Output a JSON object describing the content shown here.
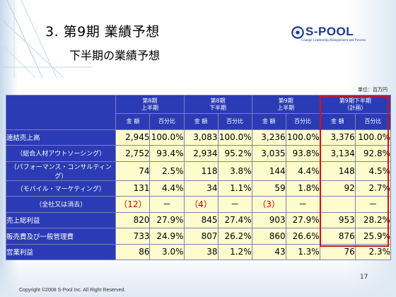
{
  "title": {
    "main": "3. 第9期 業績予想",
    "sub": "下半期の業績予想"
  },
  "logo": {
    "name": "S-POOL",
    "tagline": "Change Leadership,Management and Process"
  },
  "unit": "単位：百万円",
  "table": {
    "periods": [
      {
        "line1": "第8期",
        "line2": "上半期"
      },
      {
        "line1": "第8期",
        "line2": "下半期"
      },
      {
        "line1": "第9期",
        "line2": "上半期"
      },
      {
        "line1": "第9期下半期",
        "line2": "（計画）"
      }
    ],
    "sub_headers": {
      "amount": "金 額",
      "percent": "百分比"
    },
    "rows": [
      {
        "label": "連結売上高",
        "indent": false,
        "cells": [
          "2,945",
          "100.0%",
          "3,083",
          "100.0%",
          "3,236",
          "100.0%",
          "3,376",
          "100.0%"
        ]
      },
      {
        "label": "（総合人材アウトソーシング）",
        "indent": true,
        "cells": [
          "2,752",
          "93.4%",
          "2,934",
          "95.2%",
          "3,035",
          "93.8%",
          "3,134",
          "92.8%"
        ]
      },
      {
        "label": "（パフォーマンス・コンサルティング）",
        "indent": true,
        "cells": [
          "74",
          "2.5%",
          "118",
          "3.8%",
          "144",
          "4.4%",
          "148",
          "4.5%"
        ]
      },
      {
        "label": "（モバイル・マーケティング）",
        "indent": true,
        "cells": [
          "131",
          "4.4%",
          "34",
          "1.1%",
          "59",
          "1.8%",
          "92",
          "2.7%"
        ]
      },
      {
        "label": "（全社又は消去）",
        "indent": true,
        "cells": [
          "（12）",
          "－",
          "（4）",
          "－",
          "（3）",
          "－",
          "",
          "－"
        ]
      },
      {
        "label": "売上総利益",
        "indent": false,
        "cells": [
          "820",
          "27.9%",
          "845",
          "27.4%",
          "903",
          "27.9%",
          "953",
          "28.2%"
        ]
      },
      {
        "label": "販売費及び一般管理費",
        "indent": false,
        "cells": [
          "733",
          "24.9%",
          "807",
          "26.2%",
          "860",
          "26.6%",
          "876",
          "25.9%"
        ]
      },
      {
        "label": "営業利益",
        "indent": false,
        "cells": [
          "86",
          "3.0%",
          "38",
          "1.2%",
          "43",
          "1.3%",
          "76",
          "2.3%"
        ]
      }
    ]
  },
  "page_number": "17",
  "copyright": "Copyright ©2008 S-Pool Inc. All Right Reserved.",
  "colors": {
    "header_blue": "#2b3bb5",
    "cell_yellow": "#fefccd",
    "highlight_red": "#d1111b",
    "logo_navy": "#1a3a8c"
  }
}
